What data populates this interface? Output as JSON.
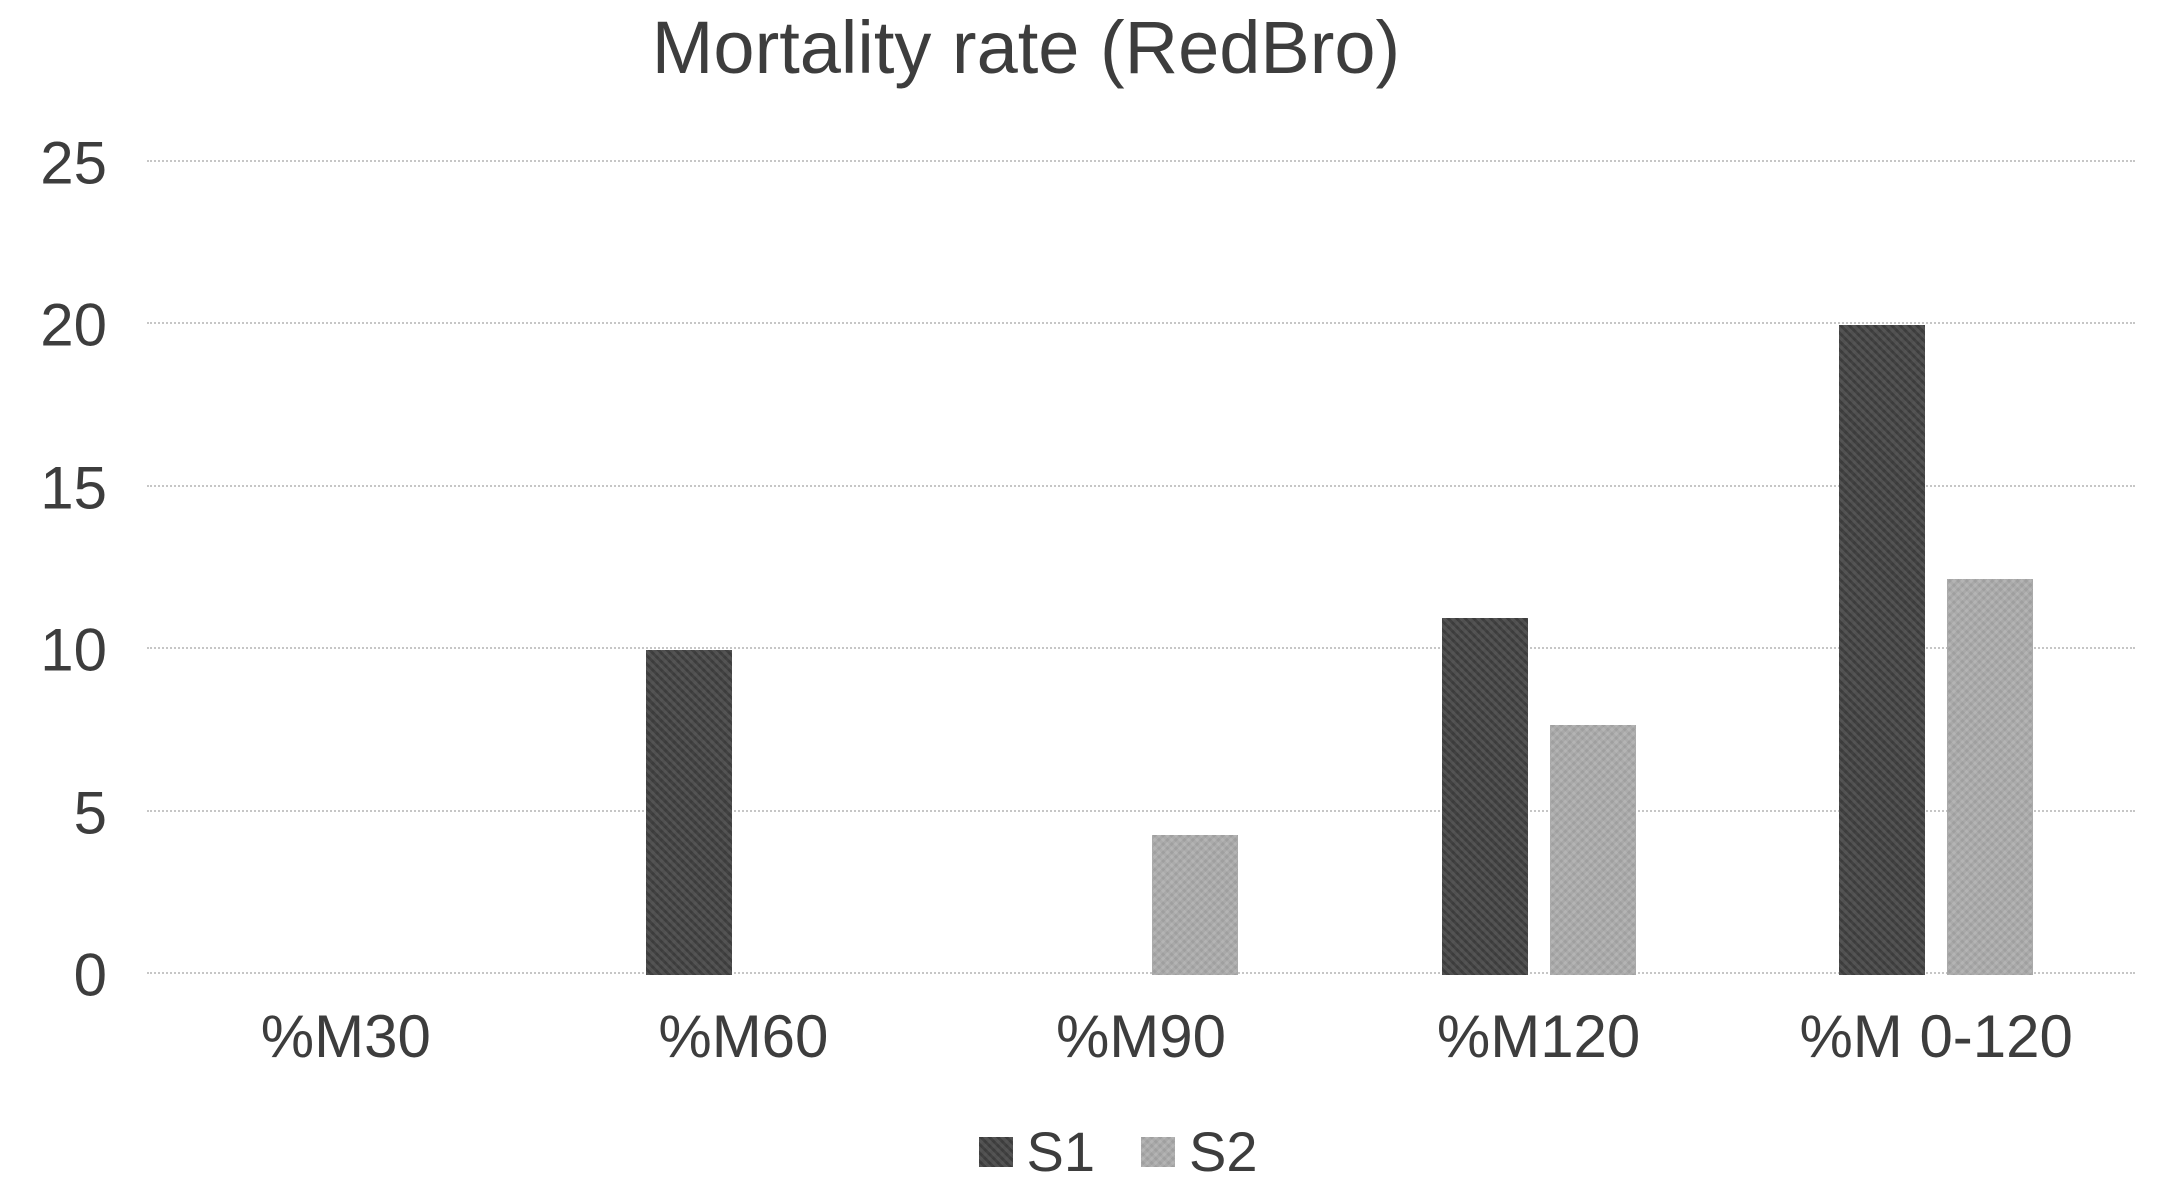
{
  "chart_data": {
    "type": "bar",
    "title": "Mortality rate (RedBro)",
    "categories": [
      "%M30",
      "%M60",
      "%M90",
      "%M120",
      "%M 0-120"
    ],
    "series": [
      {
        "name": "S1",
        "color": "#414141",
        "values": [
          0,
          10,
          0,
          11,
          20
        ]
      },
      {
        "name": "S2",
        "color": "#ababab",
        "values": [
          0,
          0,
          4.3,
          7.7,
          12.2
        ]
      }
    ],
    "y_ticks": [
      0,
      5,
      10,
      15,
      20,
      25
    ],
    "ylim": [
      0,
      25
    ],
    "xlabel": "",
    "ylabel": "",
    "grid": "horizontal",
    "legend_position": "bottom",
    "background_color": "#ffffff",
    "text_color": "#3d3d3d",
    "gridline_color": "#c6c6c6"
  }
}
